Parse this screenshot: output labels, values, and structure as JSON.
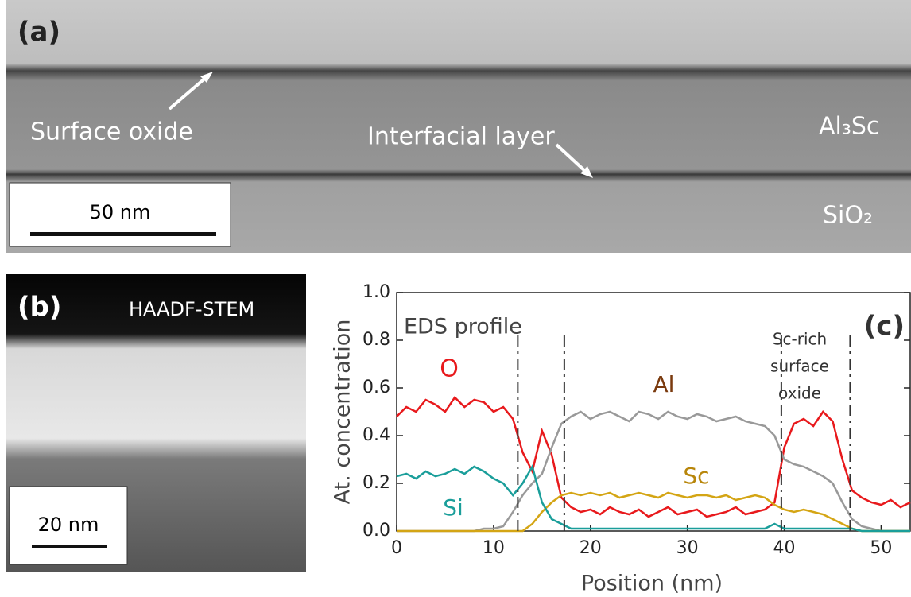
{
  "panel_a": {
    "label": "(a)",
    "surface_oxide": "Surface oxide",
    "interfacial_layer": "Interfacial layer",
    "film": "Al₃Sc",
    "substrate": "SiO₂",
    "scale_bar": "50 nm"
  },
  "panel_b": {
    "label": "(b)",
    "mode": "HAADF-STEM",
    "scale_bar": "20 nm"
  },
  "chart_data": {
    "type": "line",
    "panel_label": "(c)",
    "title": "EDS profile",
    "x_label": "Position (nm)",
    "y_label": "At. concentration",
    "xlim": [
      0,
      53
    ],
    "xticks": [
      0,
      10,
      20,
      30,
      40,
      50
    ],
    "ylim": [
      0,
      1
    ],
    "yticks": [
      {
        "value": 0,
        "label": "0.0"
      },
      0.2,
      0.4,
      0.6,
      0.8,
      {
        "value": 1,
        "label": "1.0"
      }
    ],
    "boundaries": [
      12.5,
      17.3,
      39.7,
      46.8
    ],
    "region_label": [
      "Sc-rich",
      "surface",
      "oxide"
    ],
    "x": [
      0,
      1,
      2,
      3,
      4,
      5,
      6,
      7,
      8,
      9,
      10,
      11,
      12,
      13,
      14,
      15,
      16,
      17,
      18,
      19,
      20,
      21,
      22,
      23,
      24,
      25,
      26,
      27,
      28,
      29,
      30,
      31,
      32,
      33,
      34,
      35,
      36,
      37,
      38,
      39,
      40,
      41,
      42,
      43,
      44,
      45,
      46,
      47,
      48,
      49,
      50,
      51,
      52,
      53
    ],
    "series": [
      {
        "name": "O",
        "color": "#e8191c",
        "values": [
          0.48,
          0.52,
          0.5,
          0.55,
          0.53,
          0.5,
          0.56,
          0.52,
          0.55,
          0.54,
          0.5,
          0.52,
          0.47,
          0.33,
          0.25,
          0.42,
          0.32,
          0.14,
          0.1,
          0.08,
          0.09,
          0.07,
          0.1,
          0.08,
          0.07,
          0.09,
          0.06,
          0.08,
          0.1,
          0.07,
          0.08,
          0.09,
          0.06,
          0.07,
          0.08,
          0.1,
          0.07,
          0.08,
          0.09,
          0.12,
          0.35,
          0.45,
          0.47,
          0.44,
          0.5,
          0.46,
          0.3,
          0.17,
          0.14,
          0.12,
          0.11,
          0.13,
          0.1,
          0.12
        ]
      },
      {
        "name": "Al",
        "color": "#999999",
        "label_color": "#7a3a0e",
        "values": [
          0,
          0,
          0,
          0,
          0,
          0,
          0,
          0,
          0,
          0.01,
          0.01,
          0.02,
          0.08,
          0.15,
          0.2,
          0.24,
          0.35,
          0.45,
          0.48,
          0.5,
          0.47,
          0.49,
          0.5,
          0.48,
          0.46,
          0.5,
          0.49,
          0.47,
          0.5,
          0.48,
          0.47,
          0.49,
          0.48,
          0.46,
          0.47,
          0.48,
          0.46,
          0.45,
          0.44,
          0.4,
          0.3,
          0.28,
          0.27,
          0.25,
          0.23,
          0.2,
          0.12,
          0.05,
          0.02,
          0.01,
          0,
          0,
          0,
          0
        ]
      },
      {
        "name": "Sc",
        "color": "#d4a514",
        "label_color": "#b8860b",
        "values": [
          0,
          0,
          0,
          0,
          0,
          0,
          0,
          0,
          0,
          0,
          0,
          0,
          0,
          0,
          0.03,
          0.08,
          0.12,
          0.15,
          0.16,
          0.15,
          0.16,
          0.15,
          0.16,
          0.14,
          0.15,
          0.16,
          0.15,
          0.14,
          0.16,
          0.15,
          0.14,
          0.15,
          0.15,
          0.14,
          0.15,
          0.13,
          0.14,
          0.15,
          0.14,
          0.11,
          0.09,
          0.08,
          0.09,
          0.08,
          0.07,
          0.05,
          0.03,
          0.01,
          0,
          0,
          0,
          0,
          0,
          0
        ]
      },
      {
        "name": "Si",
        "color": "#1a9e9a",
        "values": [
          0.23,
          0.24,
          0.22,
          0.25,
          0.23,
          0.24,
          0.26,
          0.24,
          0.27,
          0.25,
          0.22,
          0.2,
          0.15,
          0.2,
          0.27,
          0.12,
          0.05,
          0.03,
          0.01,
          0.01,
          0.01,
          0.01,
          0.01,
          0.01,
          0.01,
          0.01,
          0.01,
          0.01,
          0.01,
          0.01,
          0.01,
          0.01,
          0.01,
          0.01,
          0.01,
          0.01,
          0.01,
          0.01,
          0.01,
          0.03,
          0.01,
          0.01,
          0.01,
          0.01,
          0.01,
          0.01,
          0.01,
          0.01,
          0,
          0,
          0,
          0,
          0,
          0
        ]
      }
    ]
  }
}
